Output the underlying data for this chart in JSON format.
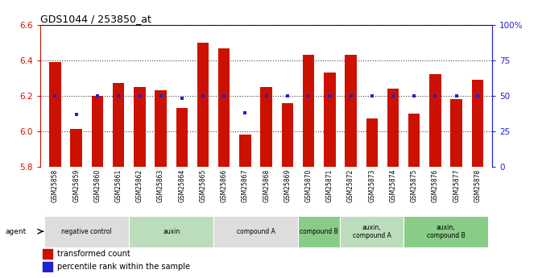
{
  "title": "GDS1044 / 253850_at",
  "samples": [
    "GSM25858",
    "GSM25859",
    "GSM25860",
    "GSM25861",
    "GSM25862",
    "GSM25863",
    "GSM25864",
    "GSM25865",
    "GSM25866",
    "GSM25867",
    "GSM25868",
    "GSM25869",
    "GSM25870",
    "GSM25871",
    "GSM25872",
    "GSM25873",
    "GSM25874",
    "GSM25875",
    "GSM25876",
    "GSM25877",
    "GSM25878"
  ],
  "transformed_count": [
    6.39,
    6.01,
    6.2,
    6.27,
    6.25,
    6.23,
    6.13,
    6.5,
    6.47,
    5.98,
    6.25,
    6.16,
    6.43,
    6.33,
    6.43,
    6.07,
    6.24,
    6.1,
    6.32,
    6.18,
    6.29
  ],
  "percentile_rank": [
    50,
    37,
    50,
    50,
    50,
    50,
    48,
    50,
    50,
    38,
    50,
    50,
    50,
    50,
    50,
    50,
    50,
    50,
    50,
    50,
    50
  ],
  "ymin": 5.8,
  "ymax": 6.6,
  "yticks_left": [
    5.8,
    6.0,
    6.2,
    6.4,
    6.6
  ],
  "yticks_right": [
    0,
    25,
    50,
    75,
    100
  ],
  "ytick_labels_right": [
    "0",
    "25",
    "50",
    "75",
    "100%"
  ],
  "bar_color": "#cc1100",
  "dot_color": "#2222cc",
  "groups": [
    {
      "label": "negative control",
      "start": 0,
      "end": 4,
      "color": "#dddddd"
    },
    {
      "label": "auxin",
      "start": 4,
      "end": 8,
      "color": "#bbddbb"
    },
    {
      "label": "compound A",
      "start": 8,
      "end": 12,
      "color": "#dddddd"
    },
    {
      "label": "compound B",
      "start": 12,
      "end": 14,
      "color": "#88cc88"
    },
    {
      "label": "auxin,\ncompound A",
      "start": 14,
      "end": 17,
      "color": "#bbddbb"
    },
    {
      "label": "auxin,\ncompound B",
      "start": 17,
      "end": 21,
      "color": "#88cc88"
    }
  ],
  "legend_items": [
    {
      "label": "transformed count",
      "color": "#cc1100"
    },
    {
      "label": "percentile rank within the sample",
      "color": "#2222cc"
    }
  ]
}
